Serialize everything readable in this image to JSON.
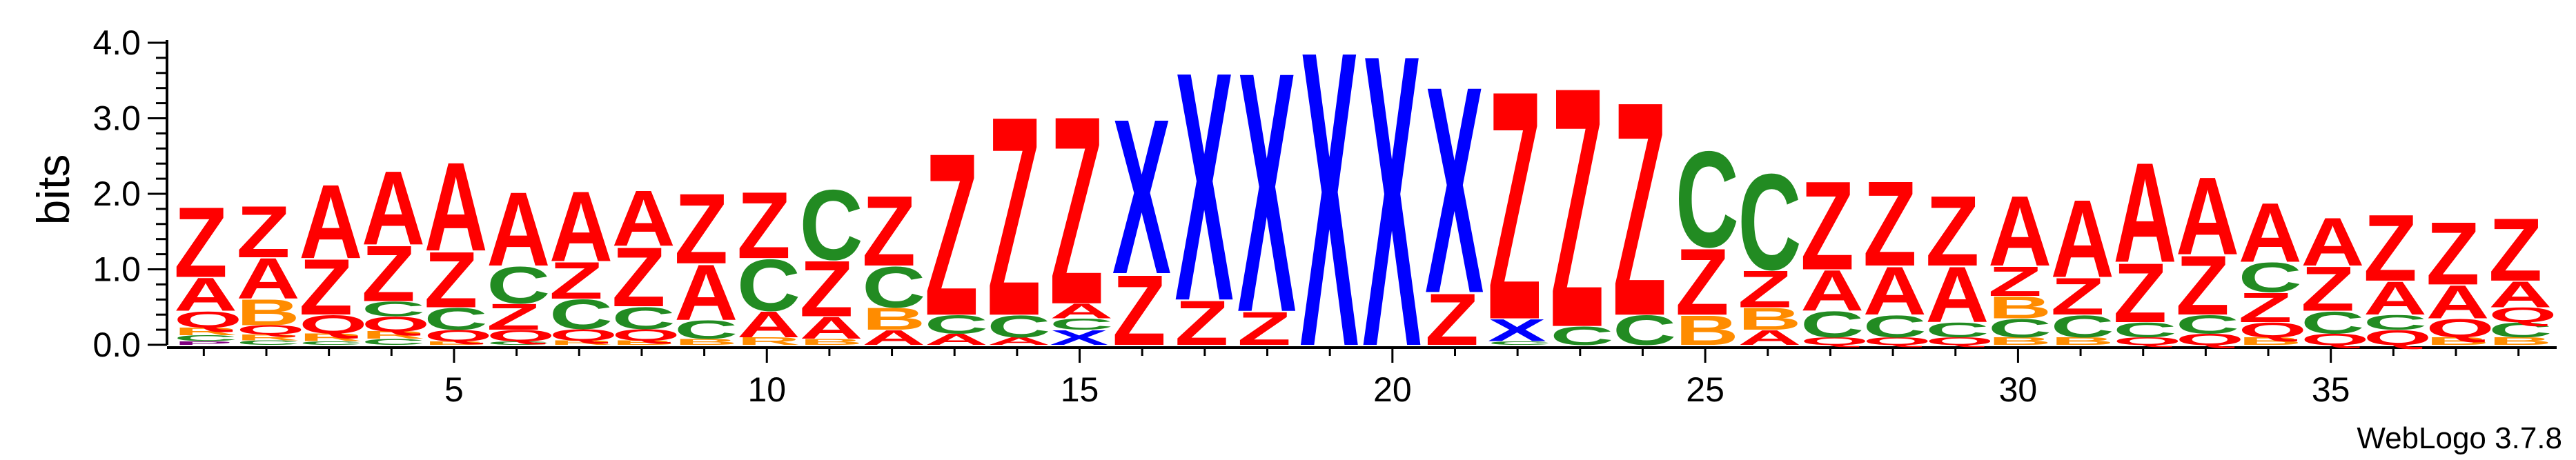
{
  "chart_data": {
    "type": "sequence_logo",
    "title": "",
    "ylabel": "bits",
    "xlabel": "",
    "ylim": [
      0,
      4.0
    ],
    "y_ticks": [
      "0.0",
      "1.0",
      "2.0",
      "3.0",
      "4.0"
    ],
    "x_ticks": [
      "5",
      "10",
      "15",
      "20",
      "25",
      "30",
      "35"
    ],
    "x_tick_positions": [
      5,
      10,
      15,
      20,
      25,
      30,
      35
    ],
    "positions": 38,
    "colors": {
      "Z": "#ff0000",
      "A": "#ff0000",
      "X": "#0000ff",
      "C": "#228b22",
      "B": "#ff8c00",
      "Q": "#ff0000",
      "R": "#ff8c00",
      "P": "#800080",
      "G": "#228b22"
    },
    "columns": [
      {
        "pos": 1,
        "stack": [
          [
            "P",
            0.05
          ],
          [
            "C",
            0.08
          ],
          [
            "R",
            0.1
          ],
          [
            "Q",
            0.22
          ],
          [
            "A",
            0.45
          ],
          [
            "Z",
            0.95
          ]
        ]
      },
      {
        "pos": 2,
        "stack": [
          [
            "C",
            0.06
          ],
          [
            "R",
            0.08
          ],
          [
            "Q",
            0.12
          ],
          [
            "B",
            0.35
          ],
          [
            "A",
            0.55
          ],
          [
            "Z",
            0.7
          ]
        ]
      },
      {
        "pos": 3,
        "stack": [
          [
            "C",
            0.05
          ],
          [
            "R",
            0.1
          ],
          [
            "Q",
            0.25
          ],
          [
            "Z",
            0.75
          ],
          [
            "A",
            1.0
          ]
        ]
      },
      {
        "pos": 4,
        "stack": [
          [
            "C",
            0.08
          ],
          [
            "R",
            0.1
          ],
          [
            "Q",
            0.2
          ],
          [
            "C",
            0.2
          ],
          [
            "Z",
            0.75
          ],
          [
            "A",
            1.0
          ]
        ]
      },
      {
        "pos": 5,
        "stack": [
          [
            "B",
            0.05
          ],
          [
            "Q",
            0.15
          ],
          [
            "C",
            0.3
          ],
          [
            "Z",
            0.75
          ],
          [
            "A",
            1.2
          ]
        ]
      },
      {
        "pos": 6,
        "stack": [
          [
            "C",
            0.05
          ],
          [
            "Q",
            0.15
          ],
          [
            "Z",
            0.35
          ],
          [
            "C",
            0.5
          ],
          [
            "A",
            1.0
          ]
        ]
      },
      {
        "pos": 7,
        "stack": [
          [
            "R",
            0.06
          ],
          [
            "Q",
            0.15
          ],
          [
            "C",
            0.4
          ],
          [
            "Z",
            0.5
          ],
          [
            "A",
            0.95
          ]
        ]
      },
      {
        "pos": 8,
        "stack": [
          [
            "B",
            0.06
          ],
          [
            "Q",
            0.15
          ],
          [
            "C",
            0.3
          ],
          [
            "Z",
            0.8
          ],
          [
            "A",
            0.75
          ]
        ]
      },
      {
        "pos": 9,
        "stack": [
          [
            "B",
            0.08
          ],
          [
            "C",
            0.25
          ],
          [
            "A",
            0.75
          ],
          [
            "Z",
            0.95
          ]
        ]
      },
      {
        "pos": 10,
        "stack": [
          [
            "R",
            0.1
          ],
          [
            "A",
            0.35
          ],
          [
            "C",
            0.7
          ],
          [
            "Z",
            0.9
          ]
        ]
      },
      {
        "pos": 11,
        "stack": [
          [
            "B",
            0.08
          ],
          [
            "A",
            0.3
          ],
          [
            "Z",
            0.75
          ],
          [
            "C",
            0.95
          ]
        ]
      },
      {
        "pos": 12,
        "stack": [
          [
            "A",
            0.2
          ],
          [
            "B",
            0.3
          ],
          [
            "C",
            0.55
          ],
          [
            "Z",
            0.95
          ]
        ]
      },
      {
        "pos": 13,
        "stack": [
          [
            "A",
            0.15
          ],
          [
            "C",
            0.25
          ],
          [
            "Z",
            2.2
          ]
        ]
      },
      {
        "pos": 14,
        "stack": [
          [
            "A",
            0.1
          ],
          [
            "C",
            0.3
          ],
          [
            "Z",
            2.7
          ]
        ]
      },
      {
        "pos": 15,
        "stack": [
          [
            "X",
            0.2
          ],
          [
            "C",
            0.15
          ],
          [
            "A",
            0.2
          ],
          [
            "Z",
            2.55
          ]
        ]
      },
      {
        "pos": 16,
        "stack": [
          [
            "Z",
            0.95
          ],
          [
            "X",
            2.1
          ]
        ]
      },
      {
        "pos": 17,
        "stack": [
          [
            "Z",
            0.6
          ],
          [
            "X",
            3.1
          ]
        ]
      },
      {
        "pos": 18,
        "stack": [
          [
            "Z",
            0.45
          ],
          [
            "X",
            3.25
          ]
        ]
      },
      {
        "pos": 19,
        "stack": [
          [
            "X",
            4.0
          ]
        ]
      },
      {
        "pos": 20,
        "stack": [
          [
            "X",
            3.95
          ]
        ]
      },
      {
        "pos": 21,
        "stack": [
          [
            "Z",
            0.7
          ],
          [
            "X",
            2.8
          ]
        ]
      },
      {
        "pos": 22,
        "stack": [
          [
            "C",
            0.05
          ],
          [
            "X",
            0.3
          ],
          [
            "Z",
            3.1
          ]
        ]
      },
      {
        "pos": 23,
        "stack": [
          [
            "C",
            0.25
          ],
          [
            "Z",
            3.25
          ]
        ]
      },
      {
        "pos": 24,
        "stack": [
          [
            "C",
            0.4
          ],
          [
            "Z",
            2.9
          ]
        ]
      },
      {
        "pos": 25,
        "stack": [
          [
            "B",
            0.4
          ],
          [
            "Z",
            0.9
          ],
          [
            "C",
            1.3
          ]
        ]
      },
      {
        "pos": 26,
        "stack": [
          [
            "A",
            0.2
          ],
          [
            "B",
            0.3
          ],
          [
            "Z",
            0.5
          ],
          [
            "C",
            1.3
          ]
        ]
      },
      {
        "pos": 27,
        "stack": [
          [
            "Q",
            0.1
          ],
          [
            "C",
            0.35
          ],
          [
            "A",
            0.55
          ],
          [
            "Z",
            1.2
          ]
        ]
      },
      {
        "pos": 28,
        "stack": [
          [
            "Q",
            0.1
          ],
          [
            "C",
            0.3
          ],
          [
            "A",
            0.65
          ],
          [
            "Z",
            1.15
          ]
        ]
      },
      {
        "pos": 29,
        "stack": [
          [
            "Q",
            0.1
          ],
          [
            "C",
            0.2
          ],
          [
            "A",
            0.75
          ],
          [
            "Z",
            0.95
          ]
        ]
      },
      {
        "pos": 30,
        "stack": [
          [
            "B",
            0.1
          ],
          [
            "C",
            0.25
          ],
          [
            "B",
            0.3
          ],
          [
            "Z",
            0.4
          ],
          [
            "A",
            0.95
          ]
        ]
      },
      {
        "pos": 31,
        "stack": [
          [
            "B",
            0.1
          ],
          [
            "C",
            0.3
          ],
          [
            "Z",
            0.5
          ],
          [
            "A",
            1.05
          ]
        ]
      },
      {
        "pos": 32,
        "stack": [
          [
            "Q",
            0.1
          ],
          [
            "C",
            0.2
          ],
          [
            "Z",
            0.8
          ],
          [
            "A",
            1.35
          ]
        ]
      },
      {
        "pos": 33,
        "stack": [
          [
            "Q",
            0.15
          ],
          [
            "C",
            0.25
          ],
          [
            "Z",
            0.8
          ],
          [
            "A",
            1.05
          ]
        ]
      },
      {
        "pos": 34,
        "stack": [
          [
            "B",
            0.1
          ],
          [
            "Q",
            0.2
          ],
          [
            "Z",
            0.4
          ],
          [
            "C",
            0.4
          ],
          [
            "A",
            0.8
          ]
        ]
      },
      {
        "pos": 35,
        "stack": [
          [
            "Q",
            0.15
          ],
          [
            "C",
            0.3
          ],
          [
            "Z",
            0.6
          ],
          [
            "A",
            0.65
          ]
        ]
      },
      {
        "pos": 36,
        "stack": [
          [
            "Q",
            0.2
          ],
          [
            "C",
            0.2
          ],
          [
            "A",
            0.45
          ],
          [
            "Z",
            0.9
          ]
        ]
      },
      {
        "pos": 37,
        "stack": [
          [
            "B",
            0.1
          ],
          [
            "Q",
            0.25
          ],
          [
            "A",
            0.45
          ],
          [
            "Z",
            0.85
          ]
        ]
      },
      {
        "pos": 38,
        "stack": [
          [
            "B",
            0.1
          ],
          [
            "C",
            0.2
          ],
          [
            "Q",
            0.2
          ],
          [
            "A",
            0.35
          ],
          [
            "Z",
            0.85
          ]
        ]
      }
    ]
  },
  "credit": "WebLogo 3.7.8"
}
